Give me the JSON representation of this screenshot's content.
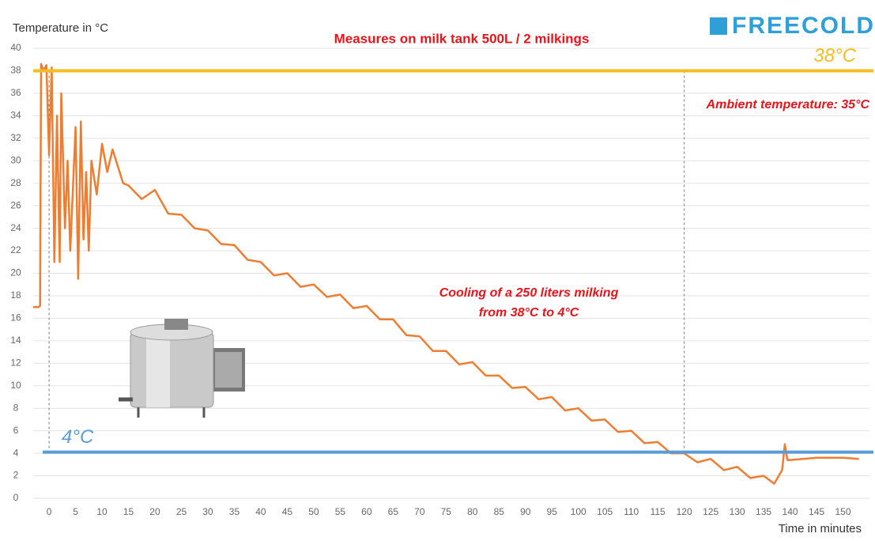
{
  "chart_data": {
    "type": "line",
    "title": "Measures on milk tank 500L / 2 milkings",
    "logo": "FREECOLD",
    "y_label": "Temperature in °C",
    "x_label": "Time in minutes",
    "annotations": [
      "Ambient temperature: 35°C",
      "Cooling of a 250 liters milking",
      "from 38°C to 4°C"
    ],
    "color": "#ed7d31",
    "x": [
      -3,
      -2,
      -1.7,
      -1.5,
      -1,
      -0.5,
      0,
      0.5,
      1,
      1.5,
      2,
      2.3,
      3,
      3.5,
      4,
      5,
      5.5,
      6,
      6.5,
      7,
      7.5,
      8,
      9,
      10,
      11,
      12,
      13,
      14,
      15,
      17.5,
      20,
      22.5,
      25,
      27.5,
      30,
      32.5,
      35,
      37.5,
      40,
      42.5,
      45,
      47.5,
      50,
      52.5,
      55,
      57.5,
      60,
      62.5,
      65,
      67.5,
      70,
      72.5,
      75,
      77.5,
      80,
      82.5,
      85,
      87.5,
      90,
      92.5,
      95,
      97.5,
      100,
      102.5,
      105,
      107.5,
      110,
      112.5,
      115,
      117.5,
      120,
      122.5,
      125,
      127.5,
      130,
      132.5,
      135,
      137,
      138.5,
      139,
      139.5,
      140,
      145,
      150,
      153
    ],
    "values": [
      17,
      17,
      17.1,
      38.6,
      38,
      38.5,
      30.5,
      38.3,
      21,
      34,
      21,
      36,
      24,
      30,
      22,
      33,
      19.5,
      33.5,
      23,
      29,
      22,
      30,
      27,
      31.5,
      29,
      31,
      29.5,
      28,
      27.8,
      26.6,
      27.4,
      25.3,
      25.2,
      24.0,
      23.8,
      22.6,
      22.5,
      21.2,
      21.0,
      19.8,
      20.0,
      18.8,
      19.0,
      17.9,
      18.1,
      16.9,
      17.1,
      15.9,
      15.9,
      14.5,
      14.4,
      13.1,
      13.1,
      11.9,
      12.1,
      10.9,
      10.9,
      9.8,
      9.9,
      8.8,
      9.0,
      7.8,
      8.0,
      6.9,
      7.0,
      5.9,
      6.0,
      4.9,
      5.0,
      4.0,
      4.0,
      3.2,
      3.5,
      2.5,
      2.8,
      1.8,
      2.0,
      1.3,
      2.5,
      4.8,
      3.4,
      3.4,
      3.6,
      3.6,
      3.5
    ],
    "reference_lines": [
      {
        "value": 38,
        "color": "#f5bd1f",
        "label": "38°C"
      },
      {
        "value": 4.1,
        "color": "#5b9bd5",
        "label": "4°C"
      }
    ],
    "vlines": [
      0,
      120
    ],
    "xlim": [
      -3,
      155
    ],
    "ylim": [
      0,
      40
    ],
    "xticks": [
      0,
      5,
      10,
      15,
      20,
      25,
      30,
      35,
      40,
      45,
      50,
      55,
      60,
      65,
      70,
      75,
      80,
      85,
      90,
      95,
      100,
      105,
      110,
      115,
      120,
      125,
      130,
      135,
      140,
      145,
      150
    ],
    "yticks": [
      0,
      2,
      4,
      6,
      8,
      10,
      12,
      14,
      16,
      18,
      20,
      22,
      24,
      26,
      28,
      30,
      32,
      34,
      36,
      38,
      40
    ],
    "grid": true
  }
}
